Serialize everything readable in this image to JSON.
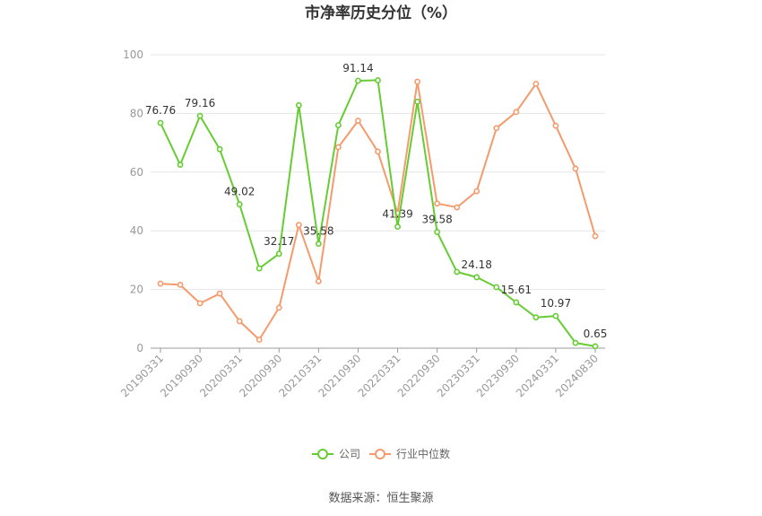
{
  "title": "市净率历史分位（%）",
  "source": "数据来源：恒生聚源",
  "legend": [
    "公司",
    "行业中位数"
  ],
  "colors": {
    "company": "#66cc33",
    "industry": "#f59a6d",
    "grid": "#e6e6e6",
    "axis": "#999999"
  },
  "chart_data": {
    "type": "line",
    "title": "市净率历史分位（%）",
    "x": [
      "20190331",
      "20190630",
      "20190930",
      "20191231",
      "20200331",
      "20200630",
      "20200930",
      "20201231",
      "20210331",
      "20210630",
      "20210930",
      "20211231",
      "20220331",
      "20220630",
      "20220930",
      "20221231",
      "20230331",
      "20230630",
      "20230930",
      "20231231",
      "20240331",
      "20240630",
      "20240830"
    ],
    "x_tick_labels": [
      "20190331",
      "20190930",
      "20200331",
      "20200930",
      "20210331",
      "20210930",
      "20220331",
      "20220930",
      "20230331",
      "20230930",
      "20240331",
      "20240830"
    ],
    "y_ticks": [
      0,
      20,
      40,
      60,
      80,
      100
    ],
    "ylim": [
      0,
      100
    ],
    "grid": true,
    "legend_position": "bottom",
    "series": [
      {
        "name": "公司",
        "values": [
          76.76,
          62.5,
          79.16,
          67.8,
          49.02,
          27.2,
          32.17,
          82.8,
          35.58,
          76.0,
          91.14,
          91.3,
          41.39,
          84.0,
          39.58,
          26.0,
          24.18,
          20.8,
          15.61,
          10.5,
          10.97,
          1.8,
          0.65
        ],
        "labels": [
          "76.76",
          "",
          "79.16",
          "",
          "49.02",
          "",
          "32.17",
          "",
          "35.58",
          "",
          "91.14",
          "",
          "41.39",
          "",
          "39.58",
          "",
          "24.18",
          "",
          "15.61",
          "",
          "10.97",
          "",
          "0.65"
        ]
      },
      {
        "name": "行业中位数",
        "values": [
          22.0,
          21.6,
          15.3,
          18.6,
          9.2,
          2.9,
          13.8,
          42.0,
          22.8,
          68.5,
          77.5,
          67.0,
          46.0,
          90.8,
          49.3,
          48.0,
          53.5,
          75.0,
          80.5,
          90.1,
          75.8,
          61.2,
          38.2
        ]
      }
    ]
  }
}
